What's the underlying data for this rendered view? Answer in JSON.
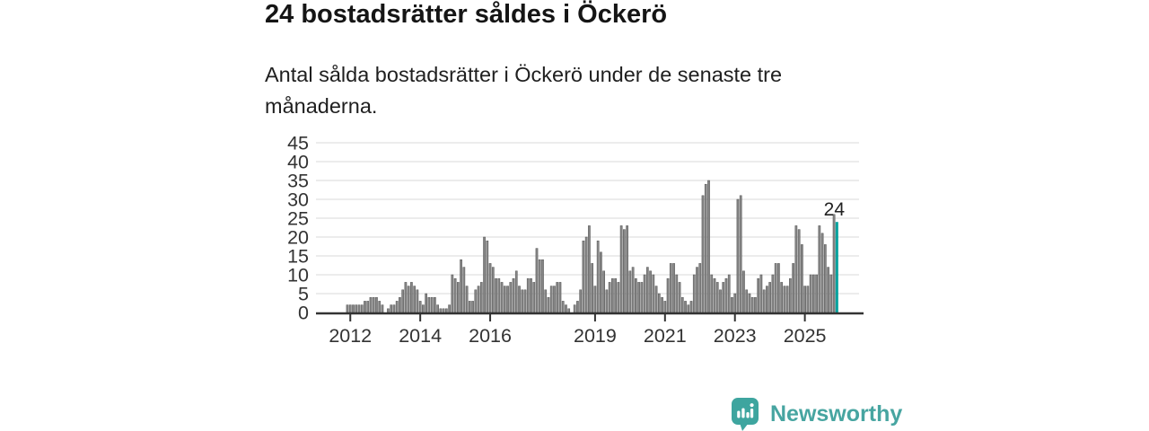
{
  "header": {
    "title": "24 bostadsrätter såldes i Öckerö",
    "subtitle": "Antal sålda bostadsrätter i Öckerö under de senaste tre månaderna."
  },
  "chart_data": {
    "type": "bar",
    "title": "24 bostadsrätter såldes i Öckerö",
    "frequency": "monthly",
    "x_start": "2011-12",
    "x_end": "2025-12",
    "ylim": [
      0,
      45
    ],
    "y_ticks": [
      0,
      5,
      10,
      15,
      20,
      25,
      30,
      35,
      40,
      45
    ],
    "x_ticks": [
      {
        "label": "2012",
        "month_index": 1
      },
      {
        "label": "2014",
        "month_index": 25
      },
      {
        "label": "2016",
        "month_index": 49
      },
      {
        "label": "2019",
        "month_index": 85
      },
      {
        "label": "2021",
        "month_index": 109
      },
      {
        "label": "2023",
        "month_index": 133
      },
      {
        "label": "2025",
        "month_index": 157
      }
    ],
    "grid": true,
    "legend": false,
    "values": [
      2,
      2,
      2,
      2,
      2,
      2,
      3,
      3,
      4,
      4,
      4,
      3,
      2,
      0,
      1,
      2,
      2,
      3,
      4,
      6,
      8,
      7,
      8,
      7,
      6,
      3,
      2,
      5,
      4,
      4,
      4,
      2,
      1,
      1,
      1,
      2,
      10,
      9,
      8,
      14,
      12,
      7,
      3,
      3,
      6,
      7,
      8,
      20,
      19,
      13,
      12,
      9,
      9,
      8,
      7,
      7,
      8,
      9,
      11,
      7,
      6,
      6,
      9,
      9,
      8,
      17,
      14,
      14,
      6,
      4,
      7,
      7,
      8,
      8,
      3,
      2,
      1,
      0,
      2,
      3,
      6,
      19,
      20,
      23,
      13,
      7,
      19,
      16,
      11,
      6,
      8,
      9,
      9,
      8,
      23,
      22,
      23,
      11,
      12,
      9,
      8,
      8,
      10,
      12,
      11,
      10,
      7,
      5,
      4,
      3,
      9,
      13,
      13,
      10,
      8,
      4,
      3,
      2,
      3,
      10,
      12,
      13,
      31,
      34,
      35,
      10,
      9,
      8,
      6,
      8,
      9,
      10,
      4,
      5,
      30,
      31,
      11,
      6,
      5,
      4,
      4,
      9,
      10,
      6,
      7,
      8,
      10,
      13,
      13,
      8,
      7,
      7,
      9,
      13,
      23,
      22,
      18,
      7,
      7,
      10,
      10,
      10,
      23,
      21,
      18,
      12,
      10,
      26,
      24
    ],
    "highlight_last": {
      "index": 168,
      "label": "24"
    }
  },
  "footer": {
    "brand": "Newsworthy"
  },
  "colors": {
    "bar_gray": "#868686",
    "bar_gray_edge": "#555555",
    "accent_teal": "#00a29e",
    "grid": "#d9d9d9",
    "axis": "#333333",
    "tick_text": "#333333",
    "title_text": "#151515",
    "brand_teal": "#47a5a1"
  }
}
